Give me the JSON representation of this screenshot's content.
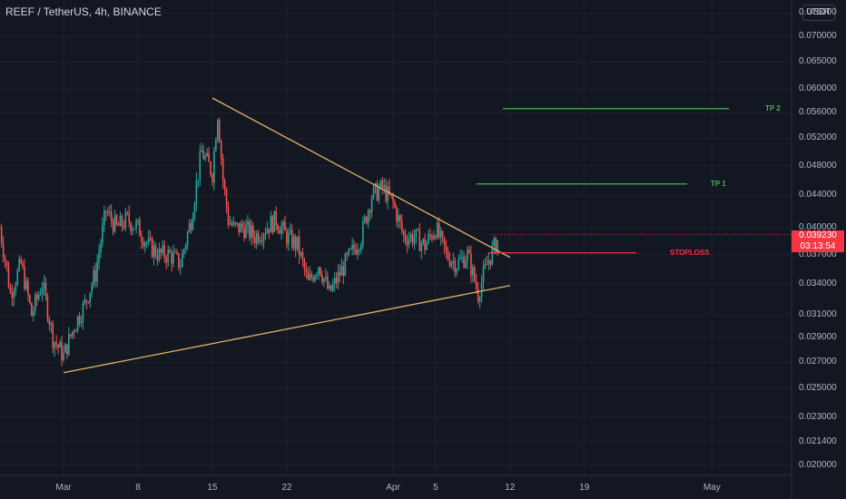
{
  "header": {
    "title": "REEF / TetherUS, 4h, BINANCE",
    "currency_button": "USDT"
  },
  "price_tag": {
    "price": "0.039230",
    "countdown": "03:13:54",
    "color": "#f23645"
  },
  "colors": {
    "up": "#26a69a",
    "down": "#ef5350",
    "trendline": "#e0b565",
    "tp": "#4caf50",
    "stop": "#f23645"
  },
  "chart_data": {
    "type": "candlestick",
    "title": "REEF / TetherUS, 4h, BINANCE",
    "y_axis": {
      "scale": "log",
      "range": [
        0.0194,
        0.0775
      ],
      "ticks": [
        "0.075000",
        "0.070000",
        "0.065000",
        "0.060000",
        "0.056000",
        "0.052000",
        "0.048000",
        "0.044000",
        "0.040000",
        "0.037000",
        "0.034000",
        "0.031000",
        "0.029000",
        "0.027000",
        "0.025000",
        "0.023000",
        "0.021400",
        "0.020000"
      ]
    },
    "x_axis": {
      "ticks": [
        "Mar",
        "8",
        "15",
        "22",
        "Apr",
        "5",
        "12",
        "19",
        "May"
      ]
    },
    "trendlines": [
      {
        "name": "descending resistance",
        "from": {
          "date": "Mar 15",
          "price": 0.0585
        },
        "to": {
          "date": "Apr 12",
          "price": 0.0367
        }
      },
      {
        "name": "ascending support",
        "from": {
          "date": "Mar 1",
          "price": 0.0262
        },
        "to": {
          "date": "Apr 12",
          "price": 0.0338
        }
      }
    ],
    "levels": [
      {
        "label": "TP 2",
        "price": 0.0567,
        "color": "#4caf50"
      },
      {
        "label": "TP 1",
        "price": 0.0455,
        "color": "#4caf50"
      },
      {
        "label": "STOPLOSS",
        "price": 0.0372,
        "color": "#f23645"
      }
    ],
    "last_price": 0.03923
  }
}
